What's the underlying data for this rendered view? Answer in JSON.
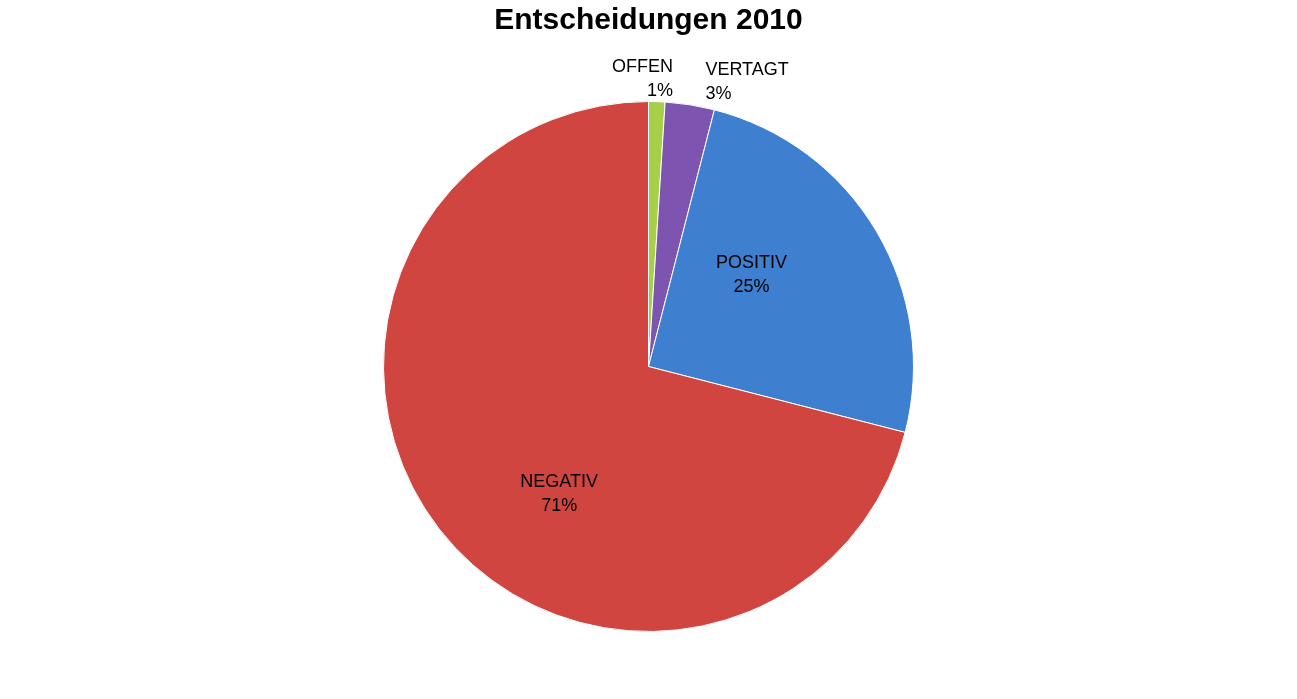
{
  "chart_data": {
    "type": "pie",
    "title": "Entscheidungen 2010",
    "categories": [
      "OFFEN",
      "VERTAGT",
      "POSITIV",
      "NEGATIV"
    ],
    "values": [
      1,
      3,
      25,
      71
    ],
    "colors": [
      "#a6d04a",
      "#7d55b0",
      "#3f7fcf",
      "#d04540"
    ],
    "value_labels": [
      "1%",
      "3%",
      "25%",
      "71%"
    ]
  }
}
